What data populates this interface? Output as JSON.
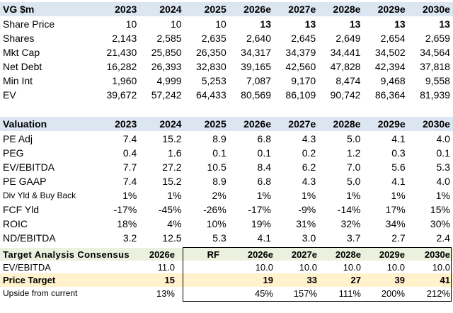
{
  "section1": {
    "header": [
      "VG $m",
      "2023",
      "2024",
      "2025",
      "2026e",
      "2027e",
      "2028e",
      "2029e",
      "2030e"
    ],
    "rows": [
      {
        "label": "Share Price",
        "values": [
          "10",
          "10",
          "10",
          "13",
          "13",
          "13",
          "13",
          "13"
        ]
      },
      {
        "label": "Shares",
        "values": [
          "2,143",
          "2,585",
          "2,635",
          "2,640",
          "2,645",
          "2,649",
          "2,654",
          "2,659"
        ]
      },
      {
        "label": "Mkt Cap",
        "values": [
          "21,430",
          "25,850",
          "26,350",
          "34,317",
          "34,379",
          "34,441",
          "34,502",
          "34,564"
        ]
      },
      {
        "label": "Net Debt",
        "values": [
          "16,282",
          "26,393",
          "32,830",
          "39,165",
          "42,560",
          "47,828",
          "42,394",
          "37,818"
        ]
      },
      {
        "label": "Min Int",
        "values": [
          "1,960",
          "4,999",
          "5,253",
          "7,087",
          "9,170",
          "8,474",
          "9,468",
          "9,558"
        ]
      },
      {
        "label": "EV",
        "values": [
          "39,672",
          "57,242",
          "64,433",
          "80,569",
          "86,109",
          "90,742",
          "86,364",
          "81,939"
        ]
      }
    ]
  },
  "section2": {
    "header": [
      "Valuation",
      "2023",
      "2024",
      "2025",
      "2026e",
      "2027e",
      "2028e",
      "2029e",
      "2030e"
    ],
    "rows": [
      {
        "label": "PE Adj",
        "values": [
          "7.4",
          "15.2",
          "8.9",
          "6.8",
          "4.3",
          "5.0",
          "4.1",
          "4.0"
        ]
      },
      {
        "label": "PEG",
        "values": [
          "0.4",
          "1.6",
          "0.1",
          "0.1",
          "0.2",
          "1.2",
          "0.3",
          "0.1"
        ]
      },
      {
        "label": "EV/EBITDA",
        "values": [
          "7.7",
          "27.2",
          "10.5",
          "8.4",
          "6.2",
          "7.0",
          "5.6",
          "5.3"
        ]
      },
      {
        "label": "PE GAAP",
        "values": [
          "7.4",
          "15.2",
          "8.9",
          "6.8",
          "4.3",
          "5.0",
          "4.1",
          "4.0"
        ]
      },
      {
        "label": "Div Yld & Buy Back",
        "values": [
          "1%",
          "1%",
          "2%",
          "1%",
          "1%",
          "1%",
          "1%",
          "1%"
        ]
      },
      {
        "label": "FCF Yld",
        "values": [
          "-17%",
          "-45%",
          "-26%",
          "-17%",
          "-9%",
          "-14%",
          "17%",
          "15%"
        ]
      },
      {
        "label": "ROIC",
        "values": [
          "18%",
          "4%",
          "10%",
          "19%",
          "31%",
          "32%",
          "34%",
          "30%"
        ]
      },
      {
        "label": "ND/EBITDA",
        "values": [
          "3.2",
          "12.5",
          "5.3",
          "4.1",
          "3.0",
          "3.7",
          "2.7",
          "2.4"
        ]
      }
    ]
  },
  "section3": {
    "header": {
      "label": "Target Analysis Consensus",
      "c2026": "2026e",
      "rf": "RF",
      "years": [
        "2026e",
        "2027e",
        "2028e",
        "2029e",
        "2030e"
      ]
    },
    "ev_ebitda": {
      "label": "EV/EBITDA",
      "c2026": "11.0",
      "years": [
        "10.0",
        "10.0",
        "10.0",
        "10.0",
        "10.0"
      ]
    },
    "price_target": {
      "label": "Price Target",
      "c2026": "15",
      "years": [
        "19",
        "33",
        "27",
        "39",
        "41"
      ]
    },
    "upside": {
      "label": "Upside from current",
      "c2026": "13%",
      "years": [
        "45%",
        "157%",
        "111%",
        "200%",
        "212%"
      ]
    }
  },
  "colors": {
    "blue_header": "#dce6f1",
    "green_header": "#ebf1de",
    "yellow_row": "#fff2cc"
  }
}
